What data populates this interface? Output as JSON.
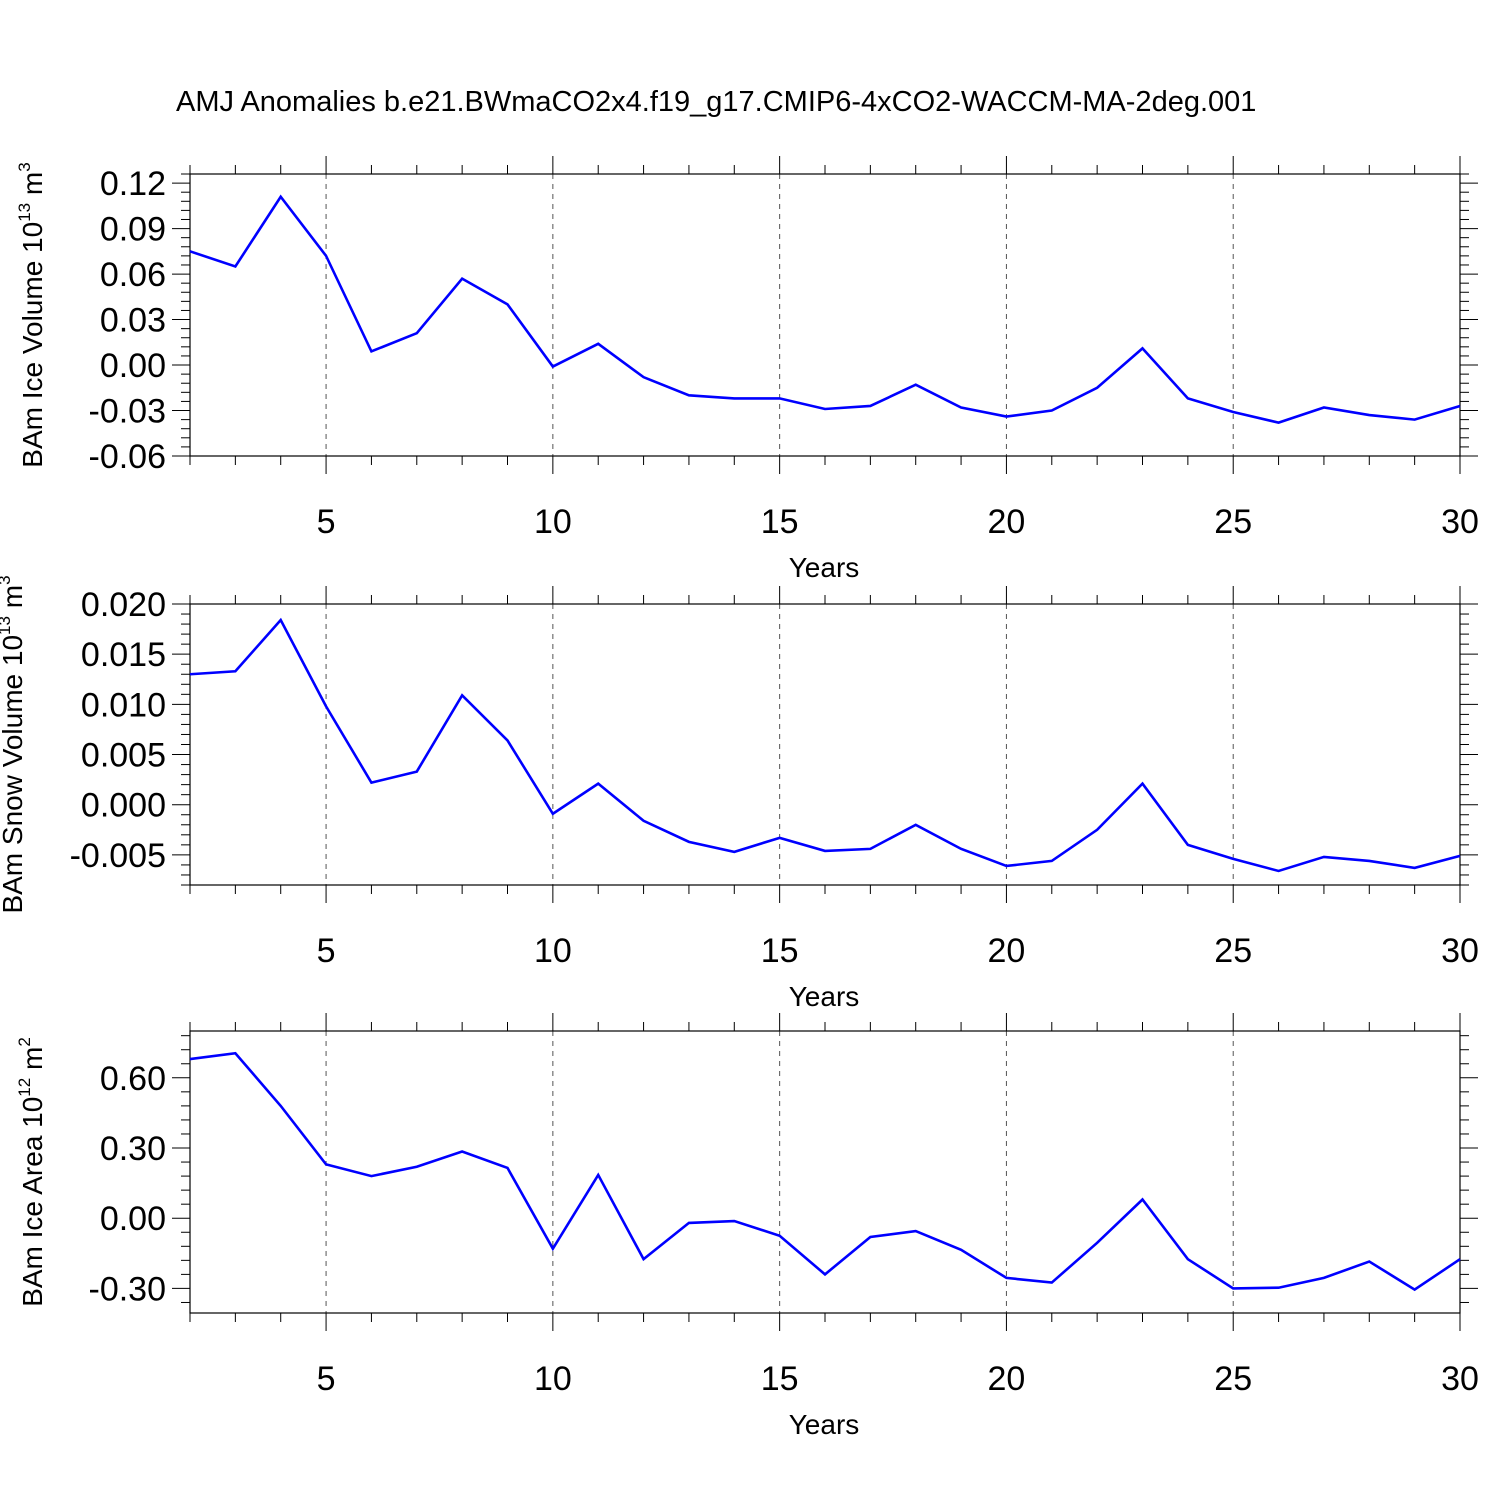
{
  "title": "AMJ Anomalies b.e21.BWmaCO2x4.f19_g17.CMIP6-4xCO2-WACCM-MA-2deg.001",
  "colors": {
    "line": "#0000ff",
    "axis": "#000000",
    "grid": "#555555"
  },
  "chart_data": [
    {
      "type": "line",
      "xlabel": "Years",
      "ylabel_text": "BAm Ice Volume 10",
      "ylabel_exp": "13",
      "ylabel_unit": " m",
      "ylabel_unit_exp": "3",
      "xlim": [
        2,
        30
      ],
      "ylim": [
        -0.06,
        0.126
      ],
      "xticks": [
        5,
        10,
        15,
        20,
        25,
        30
      ],
      "yticks": [
        -0.06,
        -0.03,
        0.0,
        0.03,
        0.06,
        0.09,
        0.12
      ],
      "ytick_labels": [
        "-0.06",
        "-0.03",
        "0.00",
        "0.03",
        "0.06",
        "0.09",
        "0.12"
      ],
      "grid": "x-dashed",
      "series": [
        {
          "x": [
            2,
            3,
            4,
            5,
            6,
            7,
            8,
            9,
            10,
            11,
            12,
            13,
            14,
            15,
            16,
            17,
            18,
            19,
            20,
            21,
            22,
            23,
            24,
            25,
            26,
            27,
            28,
            29,
            30
          ],
          "values": [
            0.075,
            0.065,
            0.111,
            0.072,
            0.009,
            0.021,
            0.057,
            0.04,
            -0.001,
            0.014,
            -0.008,
            -0.02,
            -0.022,
            -0.022,
            -0.029,
            -0.027,
            -0.013,
            -0.028,
            -0.034,
            -0.03,
            -0.015,
            0.011,
            -0.022,
            -0.031,
            -0.038,
            -0.028,
            -0.033,
            -0.036,
            -0.027
          ]
        }
      ]
    },
    {
      "type": "line",
      "xlabel": "Years",
      "ylabel_text": "BAm Snow Volume 10",
      "ylabel_exp": "13",
      "ylabel_unit": " m",
      "ylabel_unit_exp": "3",
      "xlim": [
        2,
        30
      ],
      "ylim": [
        -0.008,
        0.02
      ],
      "xticks": [
        5,
        10,
        15,
        20,
        25,
        30
      ],
      "yticks": [
        -0.005,
        0.0,
        0.005,
        0.01,
        0.015,
        0.02
      ],
      "ytick_labels": [
        "-0.005",
        "0.000",
        "0.005",
        "0.010",
        "0.015",
        "0.020"
      ],
      "grid": "x-dashed",
      "series": [
        {
          "x": [
            2,
            3,
            4,
            5,
            6,
            7,
            8,
            9,
            10,
            11,
            12,
            13,
            14,
            15,
            16,
            17,
            18,
            19,
            20,
            21,
            22,
            23,
            24,
            25,
            26,
            27,
            28,
            29,
            30
          ],
          "values": [
            0.013,
            0.0133,
            0.0184,
            0.0098,
            0.0022,
            0.0033,
            0.0109,
            0.0064,
            -0.0009,
            0.0021,
            -0.0016,
            -0.0037,
            -0.0047,
            -0.0033,
            -0.0046,
            -0.0044,
            -0.002,
            -0.0044,
            -0.0061,
            -0.0056,
            -0.0025,
            0.0021,
            -0.004,
            -0.0054,
            -0.0066,
            -0.0052,
            -0.0056,
            -0.0063,
            -0.0051
          ]
        }
      ]
    },
    {
      "type": "line",
      "xlabel": "Years",
      "ylabel_text": "BAm Ice Area 10",
      "ylabel_exp": "12",
      "ylabel_unit": " m",
      "ylabel_unit_exp": "2",
      "xlim": [
        2,
        30
      ],
      "ylim": [
        -0.405,
        0.8
      ],
      "xticks": [
        5,
        10,
        15,
        20,
        25,
        30
      ],
      "yticks": [
        -0.3,
        0.0,
        0.3,
        0.6
      ],
      "ytick_labels": [
        "-0.30",
        "0.00",
        "0.30",
        "0.60"
      ],
      "grid": "x-dashed",
      "series": [
        {
          "x": [
            2,
            3,
            4,
            5,
            6,
            7,
            8,
            9,
            10,
            11,
            12,
            13,
            14,
            15,
            16,
            17,
            18,
            19,
            20,
            21,
            22,
            23,
            24,
            25,
            26,
            27,
            28,
            29,
            30
          ],
          "values": [
            0.68,
            0.705,
            0.48,
            0.23,
            0.18,
            0.22,
            0.285,
            0.215,
            -0.13,
            0.185,
            -0.175,
            -0.02,
            -0.012,
            -0.075,
            -0.24,
            -0.08,
            -0.055,
            -0.135,
            -0.255,
            -0.275,
            -0.105,
            0.08,
            -0.175,
            -0.3,
            -0.297,
            -0.255,
            -0.185,
            -0.305,
            -0.175
          ]
        }
      ]
    }
  ]
}
